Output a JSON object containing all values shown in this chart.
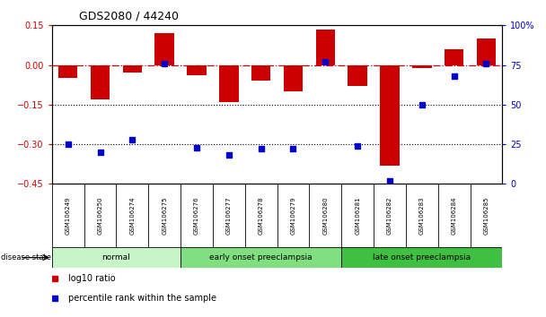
{
  "title": "GDS2080 / 44240",
  "samples": [
    "GSM106249",
    "GSM106250",
    "GSM106274",
    "GSM106275",
    "GSM106276",
    "GSM106277",
    "GSM106278",
    "GSM106279",
    "GSM106280",
    "GSM106281",
    "GSM106282",
    "GSM106283",
    "GSM106284",
    "GSM106285"
  ],
  "log10_ratio": [
    -0.05,
    -0.13,
    -0.03,
    0.12,
    -0.04,
    -0.14,
    -0.06,
    -0.1,
    0.135,
    -0.08,
    -0.38,
    -0.01,
    0.06,
    0.1
  ],
  "percentile_rank": [
    25,
    20,
    28,
    76,
    23,
    18,
    22,
    22,
    77,
    24,
    2,
    50,
    68,
    76
  ],
  "groups": [
    {
      "label": "normal",
      "start": 0,
      "end": 4,
      "color": "#c8f5c8"
    },
    {
      "label": "early onset preeclampsia",
      "start": 4,
      "end": 9,
      "color": "#80e080"
    },
    {
      "label": "late onset preeclampsia",
      "start": 9,
      "end": 14,
      "color": "#40c040"
    }
  ],
  "bar_color": "#cc0000",
  "dot_color": "#0000cc",
  "ylim_left": [
    -0.45,
    0.15
  ],
  "ylim_right": [
    0,
    100
  ],
  "yticks_left": [
    0.15,
    0.0,
    -0.15,
    -0.3,
    -0.45
  ],
  "yticks_right": [
    100,
    75,
    50,
    25,
    0
  ],
  "hlines_dotted": [
    -0.15,
    -0.3
  ],
  "background_color": "#ffffff",
  "legend_log10": "log10 ratio",
  "legend_pct": "percentile rank within the sample",
  "disease_state_label": "disease state",
  "sample_box_color": "#cccccc",
  "title_fontsize": 9,
  "tick_fontsize": 7,
  "label_fontsize": 5,
  "group_fontsize": 6.5,
  "legend_fontsize": 7
}
